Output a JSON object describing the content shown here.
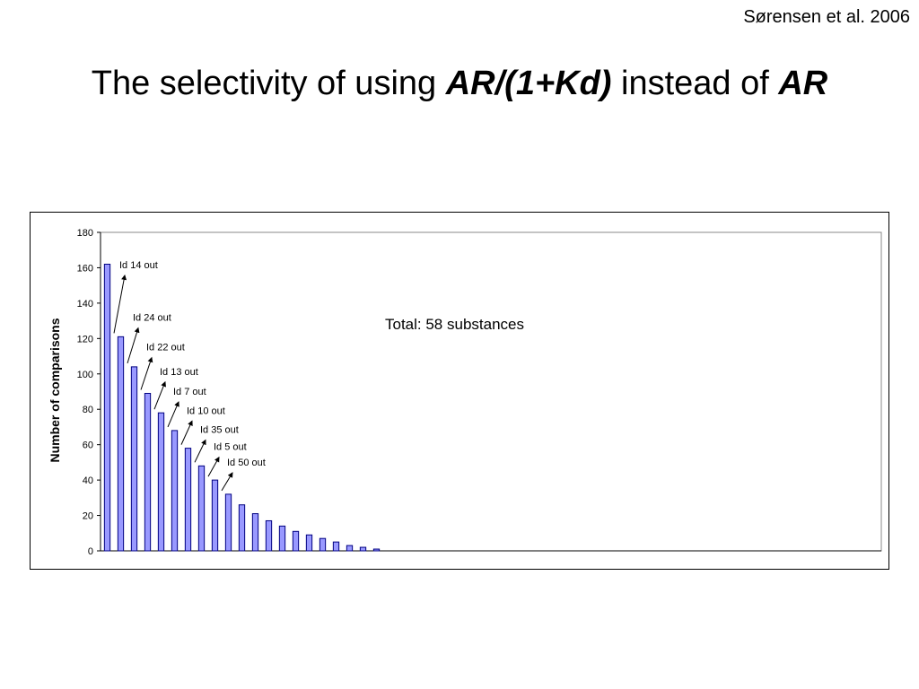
{
  "citation": "Sørensen et al. 2006",
  "title": {
    "part1": "The selectivity of using ",
    "em1": "AR/(1+Kd)",
    "part2": " instead of ",
    "em2": "AR"
  },
  "chart_data": {
    "type": "bar",
    "title": "",
    "xlabel": "",
    "ylabel": "Number of comparisons",
    "ylim": [
      0,
      180
    ],
    "yticks": [
      0,
      20,
      40,
      60,
      80,
      100,
      120,
      140,
      160,
      180
    ],
    "grid": false,
    "bar_color": "#9999ff",
    "bar_edge_color": "#000080",
    "values": [
      162,
      121,
      104,
      89,
      78,
      68,
      58,
      48,
      40,
      32,
      26,
      21,
      17,
      14,
      11,
      9,
      7,
      5,
      3,
      2,
      1
    ],
    "total_slots": 58,
    "annotation_total": "Total: 58 substances",
    "removal_labels": [
      {
        "text": "Id 14 out",
        "bar_index": 1
      },
      {
        "text": "Id 24 out",
        "bar_index": 2
      },
      {
        "text": "Id 22 out",
        "bar_index": 3
      },
      {
        "text": "Id 13 out",
        "bar_index": 4
      },
      {
        "text": "Id 7 out",
        "bar_index": 5
      },
      {
        "text": "Id 10 out",
        "bar_index": 6
      },
      {
        "text": "Id 35 out",
        "bar_index": 7
      },
      {
        "text": "Id 5 out",
        "bar_index": 8
      },
      {
        "text": "Id 50 out",
        "bar_index": 9
      }
    ]
  }
}
